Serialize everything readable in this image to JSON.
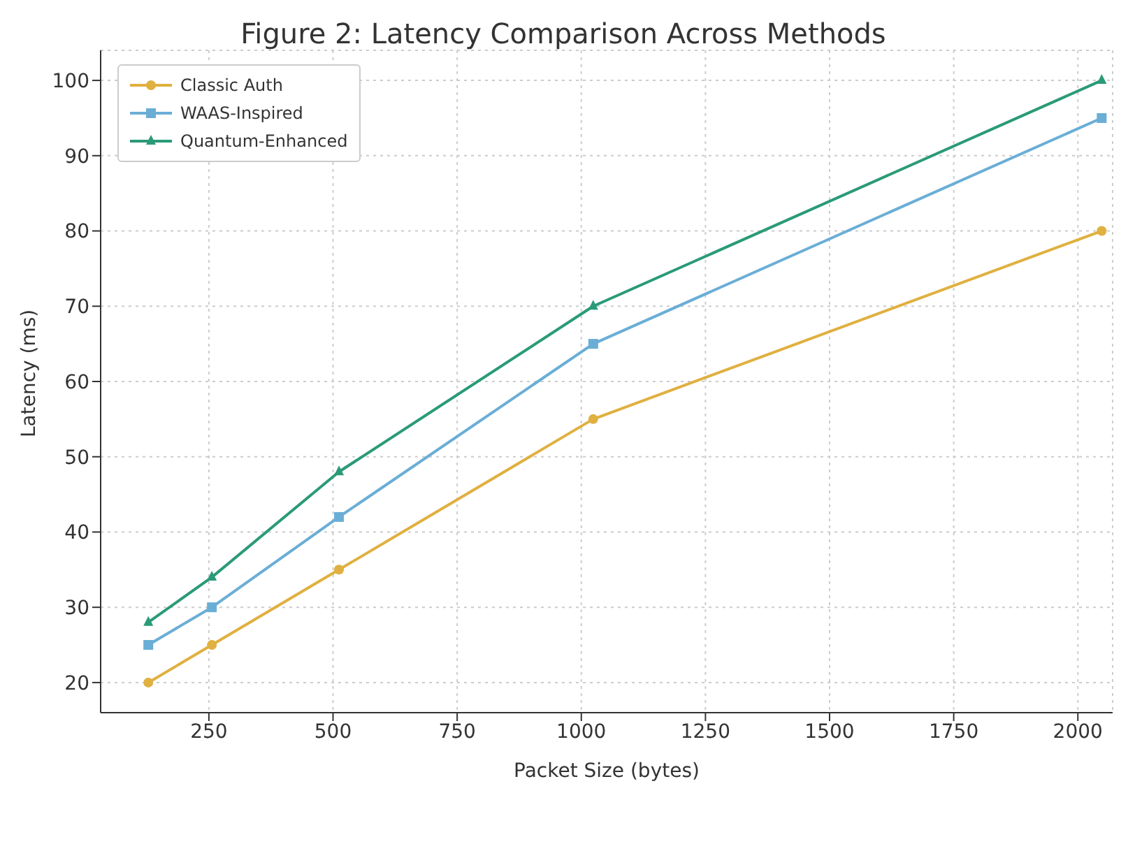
{
  "chart_data": {
    "type": "line",
    "title": "Figure 2: Latency Comparison Across Methods",
    "xlabel": "Packet Size (bytes)",
    "ylabel": "Latency (ms)",
    "x": [
      128,
      256,
      512,
      1024,
      2048
    ],
    "series": [
      {
        "name": "Classic Auth",
        "color": "#e0b040",
        "values": [
          20,
          25,
          35,
          55,
          80
        ],
        "marker": "circle"
      },
      {
        "name": "WAAS-Inspired",
        "color": "#6aaed6",
        "values": [
          25,
          30,
          42,
          65,
          95
        ],
        "marker": "square"
      },
      {
        "name": "Quantum-Enhanced",
        "color": "#2a9a78",
        "values": [
          28,
          34,
          48,
          70,
          100
        ],
        "marker": "triangle"
      }
    ],
    "xlim": [
      32,
      2070
    ],
    "xticks": [
      250,
      500,
      750,
      1000,
      1250,
      1500,
      1750,
      2000
    ],
    "ylim": [
      16,
      104
    ],
    "yticks": [
      20,
      30,
      40,
      50,
      60,
      70,
      80,
      90,
      100
    ],
    "grid": true,
    "legend": "top left",
    "line_style": "solid"
  }
}
